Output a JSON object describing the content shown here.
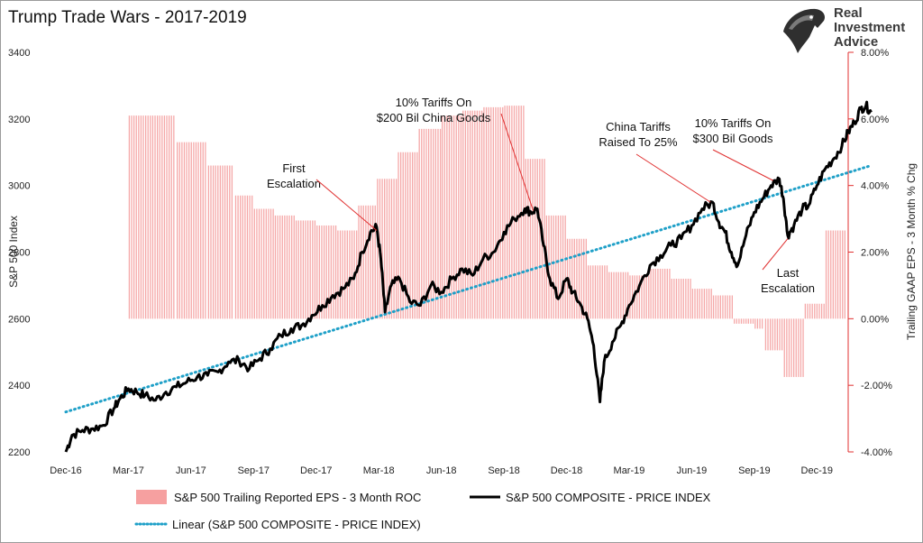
{
  "chart_data": {
    "type": "bar+line",
    "title": "Trump Trade Wars - 2017-2019",
    "ylabel_left": "S&P 500 Index",
    "ylabel_right": "Trailing GAAP EPS - 3 Month % Chg",
    "ylim_left": [
      2200,
      3400
    ],
    "ylim_right": [
      -4,
      8
    ],
    "yticks_left": [
      2200,
      2400,
      2600,
      2800,
      3000,
      3200,
      3400
    ],
    "yticks_right": [
      "-4.00%",
      "-2.00%",
      "0.00%",
      "2.00%",
      "4.00%",
      "6.00%",
      "8.00%"
    ],
    "yticks_right_values": [
      -4,
      -2,
      0,
      2,
      4,
      6,
      8
    ],
    "xrange_months": [
      0,
      37.5
    ],
    "xticks": [
      {
        "label": "Dec-16",
        "m": 0
      },
      {
        "label": "Mar-17",
        "m": 3
      },
      {
        "label": "Jun-17",
        "m": 6
      },
      {
        "label": "Sep-17",
        "m": 9
      },
      {
        "label": "Dec-17",
        "m": 12
      },
      {
        "label": "Mar-18",
        "m": 15
      },
      {
        "label": "Jun-18",
        "m": 18
      },
      {
        "label": "Sep-18",
        "m": 21
      },
      {
        "label": "Dec-18",
        "m": 24
      },
      {
        "label": "Mar-19",
        "m": 27
      },
      {
        "label": "Jun-19",
        "m": 30
      },
      {
        "label": "Sep-19",
        "m": 33
      },
      {
        "label": "Dec-19",
        "m": 36
      }
    ],
    "eps_roc": {
      "name": "S&P 500 Trailing Reported EPS - 3 Month ROC",
      "color": "#f28b8b",
      "steps": [
        {
          "start": 3.0,
          "end": 5.3,
          "value": 6.1
        },
        {
          "start": 5.3,
          "end": 6.8,
          "value": 5.3
        },
        {
          "start": 6.8,
          "end": 8.1,
          "value": 4.6
        },
        {
          "start": 8.1,
          "end": 9.0,
          "value": 3.7
        },
        {
          "start": 9.0,
          "end": 10.0,
          "value": 3.3
        },
        {
          "start": 10.0,
          "end": 11.0,
          "value": 3.1
        },
        {
          "start": 11.0,
          "end": 12.0,
          "value": 2.95
        },
        {
          "start": 12.0,
          "end": 13.0,
          "value": 2.8
        },
        {
          "start": 13.0,
          "end": 14.0,
          "value": 2.65
        },
        {
          "start": 14.0,
          "end": 14.9,
          "value": 3.4
        },
        {
          "start": 14.9,
          "end": 15.9,
          "value": 4.2
        },
        {
          "start": 15.9,
          "end": 16.9,
          "value": 5.0
        },
        {
          "start": 16.9,
          "end": 18.0,
          "value": 5.7
        },
        {
          "start": 18.0,
          "end": 19.0,
          "value": 6.1
        },
        {
          "start": 19.0,
          "end": 20.0,
          "value": 6.25
        },
        {
          "start": 20.0,
          "end": 21.0,
          "value": 6.35
        },
        {
          "start": 21.0,
          "end": 22.0,
          "value": 6.4
        },
        {
          "start": 22.0,
          "end": 23.0,
          "value": 4.8
        },
        {
          "start": 23.0,
          "end": 24.0,
          "value": 3.1
        },
        {
          "start": 24.0,
          "end": 25.0,
          "value": 2.4
        },
        {
          "start": 25.0,
          "end": 26.0,
          "value": 1.6
        },
        {
          "start": 26.0,
          "end": 27.0,
          "value": 1.4
        },
        {
          "start": 27.0,
          "end": 28.0,
          "value": 1.3
        },
        {
          "start": 28.0,
          "end": 29.0,
          "value": 1.5
        },
        {
          "start": 29.0,
          "end": 30.0,
          "value": 1.2
        },
        {
          "start": 30.0,
          "end": 31.0,
          "value": 0.9
        },
        {
          "start": 31.0,
          "end": 32.0,
          "value": 0.7
        },
        {
          "start": 32.0,
          "end": 33.0,
          "value": -0.15
        },
        {
          "start": 33.0,
          "end": 33.5,
          "value": -0.3
        },
        {
          "start": 33.5,
          "end": 34.4,
          "value": -0.95
        },
        {
          "start": 34.4,
          "end": 35.4,
          "value": -1.75
        },
        {
          "start": 35.4,
          "end": 36.4,
          "value": 0.45
        },
        {
          "start": 36.4,
          "end": 37.4,
          "value": 2.65
        }
      ]
    },
    "sp500": {
      "name": "S&P 500 COMPOSITE - PRICE INDEX",
      "color": "#000000",
      "points": [
        [
          0.0,
          2200
        ],
        [
          0.3,
          2250
        ],
        [
          0.8,
          2265
        ],
        [
          1.3,
          2270
        ],
        [
          1.8,
          2280
        ],
        [
          2.3,
          2330
        ],
        [
          2.6,
          2360
        ],
        [
          3.0,
          2390
        ],
        [
          3.4,
          2380
        ],
        [
          3.8,
          2370
        ],
        [
          4.3,
          2355
        ],
        [
          4.8,
          2380
        ],
        [
          5.3,
          2395
        ],
        [
          5.8,
          2410
        ],
        [
          6.3,
          2425
        ],
        [
          6.8,
          2430
        ],
        [
          7.3,
          2440
        ],
        [
          7.8,
          2470
        ],
        [
          8.3,
          2475
        ],
        [
          8.8,
          2450
        ],
        [
          9.3,
          2480
        ],
        [
          9.8,
          2510
        ],
        [
          10.3,
          2550
        ],
        [
          10.8,
          2570
        ],
        [
          11.3,
          2580
        ],
        [
          11.8,
          2610
        ],
        [
          12.3,
          2640
        ],
        [
          12.8,
          2670
        ],
        [
          13.3,
          2690
        ],
        [
          13.8,
          2720
        ],
        [
          14.2,
          2800
        ],
        [
          14.6,
          2860
        ],
        [
          14.9,
          2875
        ],
        [
          15.1,
          2780
        ],
        [
          15.3,
          2620
        ],
        [
          15.6,
          2700
        ],
        [
          16.0,
          2720
        ],
        [
          16.5,
          2650
        ],
        [
          17.0,
          2640
        ],
        [
          17.5,
          2700
        ],
        [
          18.0,
          2680
        ],
        [
          18.5,
          2720
        ],
        [
          19.0,
          2750
        ],
        [
          19.5,
          2730
        ],
        [
          20.0,
          2780
        ],
        [
          20.5,
          2800
        ],
        [
          21.0,
          2860
        ],
        [
          21.5,
          2900
        ],
        [
          22.0,
          2930
        ],
        [
          22.3,
          2920
        ],
        [
          22.6,
          2930
        ],
        [
          22.9,
          2820
        ],
        [
          23.2,
          2720
        ],
        [
          23.6,
          2660
        ],
        [
          24.0,
          2720
        ],
        [
          24.3,
          2680
        ],
        [
          24.6,
          2650
        ],
        [
          25.0,
          2600
        ],
        [
          25.3,
          2520
        ],
        [
          25.6,
          2350
        ],
        [
          25.8,
          2470
        ],
        [
          26.2,
          2530
        ],
        [
          26.6,
          2580
        ],
        [
          27.0,
          2640
        ],
        [
          27.5,
          2700
        ],
        [
          28.0,
          2760
        ],
        [
          28.5,
          2790
        ],
        [
          29.0,
          2820
        ],
        [
          29.5,
          2840
        ],
        [
          30.0,
          2880
        ],
        [
          30.5,
          2930
        ],
        [
          31.0,
          2950
        ],
        [
          31.3,
          2890
        ],
        [
          31.6,
          2860
        ],
        [
          31.9,
          2800
        ],
        [
          32.2,
          2760
        ],
        [
          32.6,
          2850
        ],
        [
          33.0,
          2920
        ],
        [
          33.4,
          2960
        ],
        [
          33.8,
          3000
        ],
        [
          34.2,
          3020
        ],
        [
          34.4,
          2960
        ],
        [
          34.6,
          2850
        ],
        [
          34.9,
          2880
        ],
        [
          35.3,
          2930
        ],
        [
          35.6,
          2940
        ],
        [
          36.0,
          3000
        ],
        [
          36.4,
          3050
        ],
        [
          36.8,
          3080
        ],
        [
          37.2,
          3120
        ],
        [
          37.5,
          3160
        ],
        [
          37.8,
          3190
        ],
        [
          38.1,
          3230
        ],
        [
          38.35,
          3240
        ],
        [
          38.6,
          3220
        ]
      ]
    },
    "trend": {
      "name": "Linear (S&P 500 COMPOSITE - PRICE INDEX)",
      "color": "#1fa0c8",
      "start": [
        0.0,
        2320
      ],
      "end": [
        38.6,
        3060
      ]
    },
    "annotations": [
      {
        "lines": [
          "First",
          "Escalation"
        ],
        "target": [
          14.9,
          2865
        ]
      },
      {
        "lines": [
          "10% Tariffs On",
          "$200 Bil China Goods"
        ],
        "target": [
          22.4,
          2925
        ]
      },
      {
        "lines": [
          "China Tariffs",
          "Raised To 25%"
        ],
        "target": [
          30.9,
          2950
        ]
      },
      {
        "lines": [
          "10% Tariffs On",
          "$300 Bil Goods"
        ],
        "target": [
          33.9,
          3015
        ]
      },
      {
        "lines": [
          "Last",
          "Escalation"
        ],
        "target": [
          34.6,
          2840
        ]
      }
    ]
  },
  "logo": {
    "lines": [
      "Real",
      "Investment",
      "Advice"
    ],
    "mark": "eagle-head-logo"
  },
  "legend": {
    "eps": "S&P 500 Trailing Reported EPS - 3 Month ROC",
    "price": "S&P 500 COMPOSITE - PRICE INDEX",
    "linear": "Linear (S&P 500 COMPOSITE - PRICE INDEX)"
  }
}
